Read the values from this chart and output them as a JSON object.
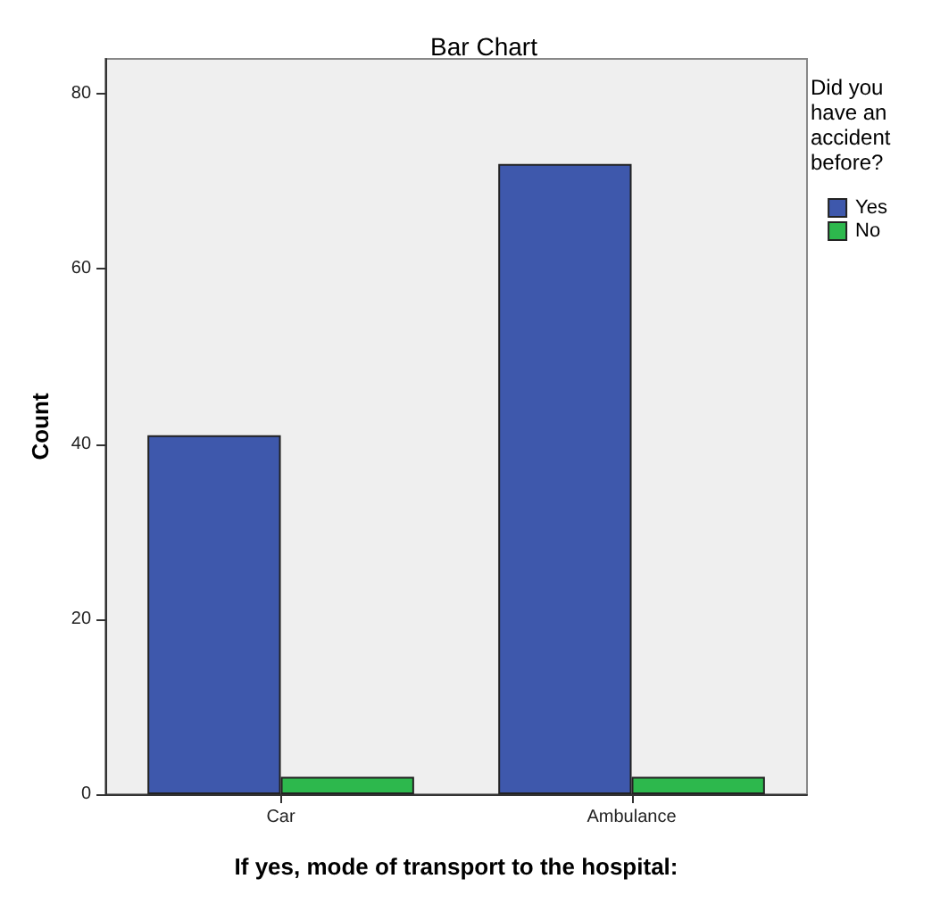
{
  "chart_data": {
    "type": "bar",
    "title": "Bar Chart",
    "xlabel": "If yes, mode of transport to the hospital:",
    "ylabel": "Count",
    "legend_title": "Did you have an accident before?",
    "categories": [
      "Car",
      "Ambulance"
    ],
    "series": [
      {
        "name": "Yes",
        "color": "#3e58ac",
        "values": [
          41,
          72
        ]
      },
      {
        "name": "No",
        "color": "#2db84d",
        "values": [
          2,
          2
        ]
      }
    ],
    "ylim": [
      0,
      84
    ],
    "yticks": [
      0,
      20,
      40,
      60,
      80
    ],
    "grid": false,
    "legend": "top right"
  }
}
